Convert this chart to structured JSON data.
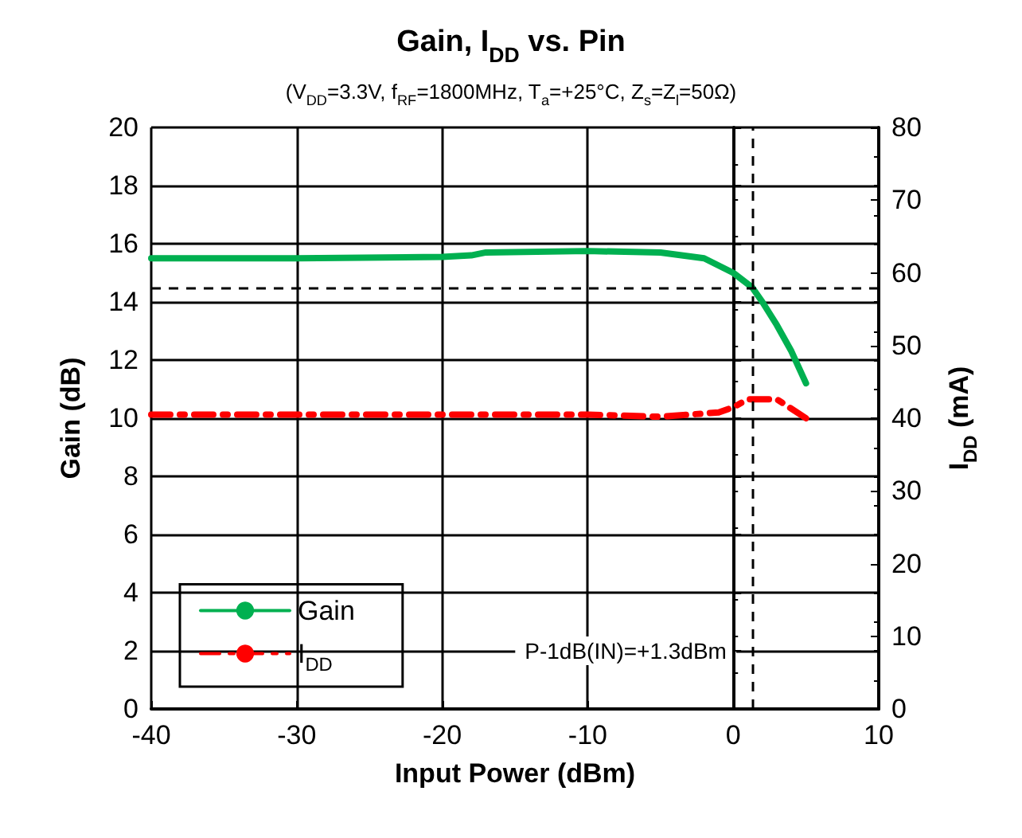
{
  "chart_data": {
    "type": "line",
    "title": "Gain, I$_{DD}$ vs. Pin",
    "subtitle": "(V$_{DD}$=3.3V, f$_{RF}$=1800MHz, T$_{a}$=+25°C, Z$_{s}$=Z$_{l}$=50Ω)",
    "xlabel": "Input Power (dBm)",
    "ylabel": "Gain (dB)",
    "y2label": "I$_{DD}$ (mA)",
    "xlim": [
      -40,
      10
    ],
    "xticks": [
      -40,
      -30,
      -20,
      -10,
      0,
      10
    ],
    "ylim": [
      0,
      20
    ],
    "yticks": [
      0,
      2,
      4,
      6,
      8,
      10,
      12,
      14,
      16,
      18,
      20
    ],
    "y2lim": [
      0,
      80
    ],
    "y2ticks": [
      0,
      10,
      20,
      30,
      40,
      50,
      60,
      70,
      80
    ],
    "grid": true,
    "legend": "bottom left",
    "marker": "none",
    "series": [
      {
        "name": "Gain",
        "color": "#00b050",
        "line_style": "solid",
        "x": [
          -40,
          -30,
          -20,
          -18,
          -17,
          -10,
          -5,
          -2,
          0,
          1.3,
          2,
          3,
          4,
          5
        ],
        "values": [
          15.5,
          15.5,
          15.55,
          15.6,
          15.7,
          15.75,
          15.7,
          15.5,
          15.0,
          14.5,
          14.0,
          13.2,
          12.3,
          11.2
        ]
      },
      {
        "name": "I$_{DD}$",
        "color": "#ff0000",
        "line_style": "dashed",
        "axis": "y2",
        "x": [
          -40,
          -30,
          -20,
          -10,
          -5,
          -1,
          0,
          1,
          3,
          5
        ],
        "values": [
          40.5,
          40.5,
          40.5,
          40.5,
          40.2,
          40.8,
          41.5,
          42.6,
          42.6,
          40
        ]
      }
    ],
    "ref_lines": [
      {
        "axis": "y",
        "value": 14.5,
        "line_style": "dashed",
        "color": "#000000"
      },
      {
        "axis": "x",
        "value": 1.3,
        "line_style": "dashed",
        "color": "#000000",
        "label": "P-1dB(IN)=+1.3dBm"
      }
    ]
  }
}
